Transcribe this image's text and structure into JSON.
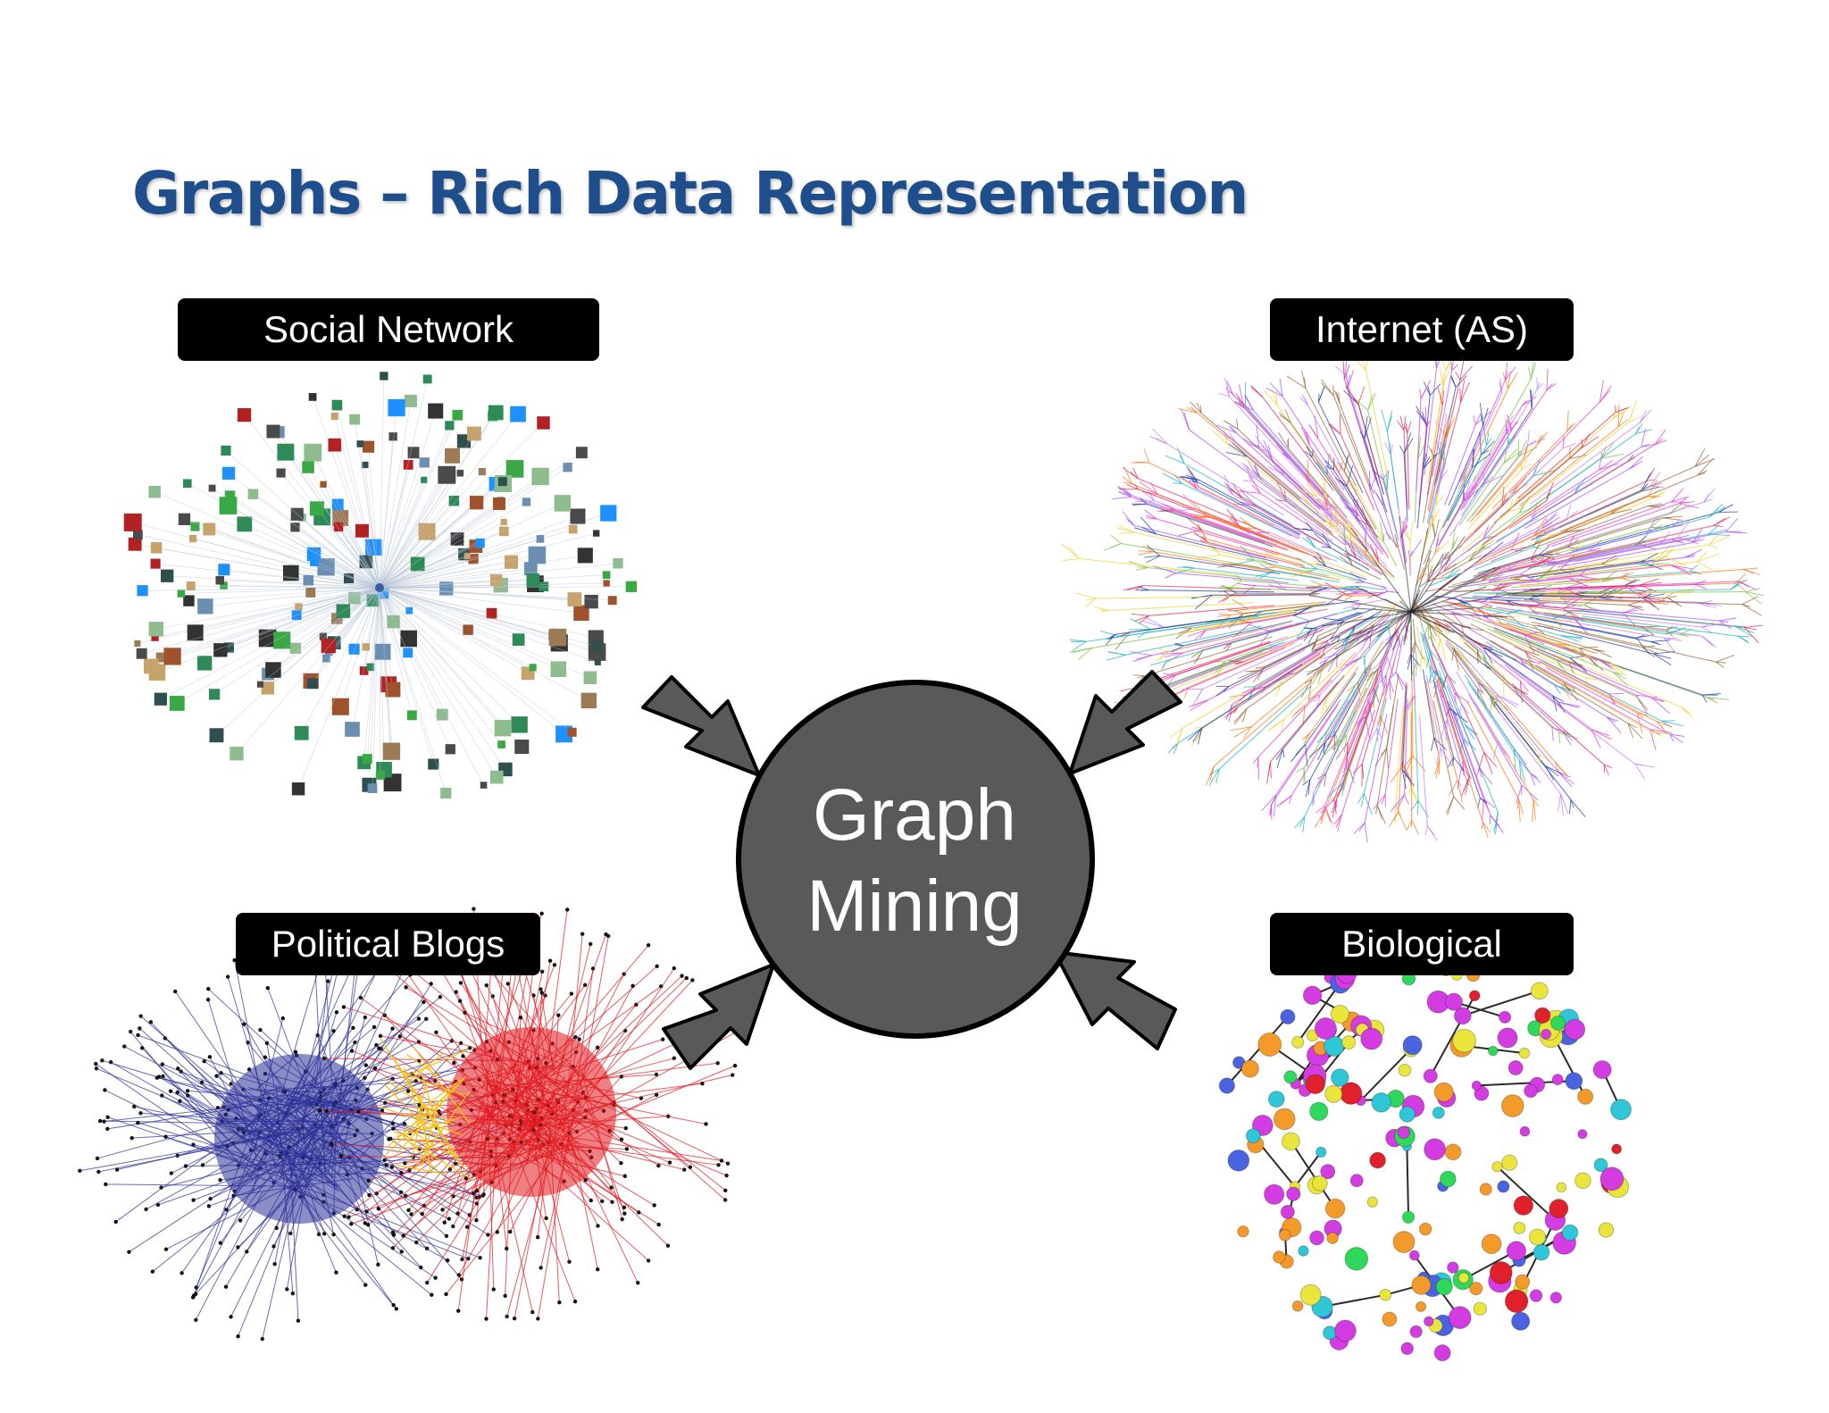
{
  "title": "Graphs – Rich Data Representation",
  "center": {
    "line1": "Graph",
    "line2": "Mining"
  },
  "labels": {
    "social": "Social Network",
    "internet": "Internet (AS)",
    "political": "Political Blogs",
    "biological": "Biological"
  },
  "colors": {
    "title": "#1f4e8c",
    "hub": "#595959",
    "arrow": "#595959",
    "blog_left": "#2b2f96",
    "blog_right": "#e0171d",
    "blog_bridge": "#f3c21a"
  }
}
